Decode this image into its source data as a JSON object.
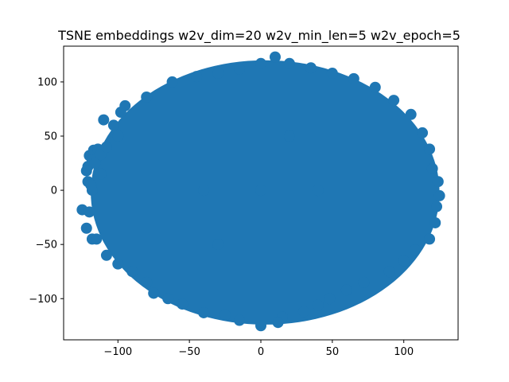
{
  "chart_data": {
    "type": "scatter",
    "title": "TSNE embeddings w2v_dim=20 w2v_min_len=5 w2v_epoch=5",
    "xlabel": "",
    "ylabel": "",
    "xlim": [
      -138,
      138
    ],
    "ylim": [
      -138,
      133
    ],
    "xticks": [
      -100,
      -50,
      0,
      50,
      100
    ],
    "yticks": [
      -100,
      -50,
      0,
      50,
      100
    ],
    "xtick_labels": [
      "−100",
      "−50",
      "0",
      "50",
      "100"
    ],
    "ytick_labels": [
      "−100",
      "−50",
      "0",
      "50",
      "100"
    ],
    "grid": false,
    "legend": "none",
    "marker_color": "#1f77b4",
    "cluster": {
      "shape": "ellipse",
      "center": [
        3,
        -2
      ],
      "x_half_range": 122,
      "y_half_range": 122
    },
    "series": [
      {
        "values": [
          [
            -120,
            32
          ],
          [
            -117,
            37
          ],
          [
            -114,
            38
          ],
          [
            -118,
            28
          ],
          [
            -121,
            22
          ],
          [
            -116,
            25
          ],
          [
            -112,
            33
          ],
          [
            -121,
            8
          ],
          [
            -119,
            5
          ],
          [
            -122,
            18
          ],
          [
            -125,
            -18
          ],
          [
            -122,
            -35
          ],
          [
            -118,
            -45
          ],
          [
            -95,
            78
          ],
          [
            -80,
            86
          ],
          [
            -62,
            100
          ],
          [
            -45,
            105
          ],
          [
            -30,
            108
          ],
          [
            -15,
            112
          ],
          [
            0,
            117
          ],
          [
            10,
            123
          ],
          [
            20,
            117
          ],
          [
            35,
            113
          ],
          [
            50,
            108
          ],
          [
            65,
            103
          ],
          [
            80,
            95
          ],
          [
            93,
            83
          ],
          [
            105,
            70
          ],
          [
            113,
            53
          ],
          [
            118,
            38
          ],
          [
            120,
            20
          ],
          [
            124,
            8
          ],
          [
            125,
            -5
          ],
          [
            123,
            -15
          ],
          [
            122,
            -30
          ],
          [
            118,
            -45
          ],
          [
            108,
            -55
          ],
          [
            100,
            -65
          ],
          [
            90,
            -75
          ],
          [
            72,
            -85
          ],
          [
            60,
            -92
          ],
          [
            48,
            -100
          ],
          [
            40,
            -106
          ],
          [
            30,
            -112
          ],
          [
            15,
            -117
          ],
          [
            12,
            -122
          ],
          [
            0,
            -125
          ],
          [
            -15,
            -120
          ],
          [
            -25,
            -115
          ],
          [
            -40,
            -113
          ],
          [
            -55,
            -105
          ],
          [
            -65,
            -100
          ],
          [
            -75,
            -95
          ],
          [
            -80,
            -85
          ],
          [
            -90,
            -75
          ],
          [
            -100,
            -68
          ],
          [
            -108,
            -60
          ],
          [
            -115,
            -45
          ],
          [
            -120,
            -20
          ],
          [
            -118,
            0
          ],
          [
            -112,
            15
          ],
          [
            -108,
            40
          ],
          [
            -103,
            60
          ],
          [
            -100,
            50
          ],
          [
            -110,
            65
          ],
          [
            -98,
            72
          ],
          [
            -40,
            0
          ],
          [
            0,
            0
          ],
          [
            40,
            0
          ],
          [
            20,
            50
          ],
          [
            -30,
            -50
          ]
        ]
      }
    ]
  }
}
